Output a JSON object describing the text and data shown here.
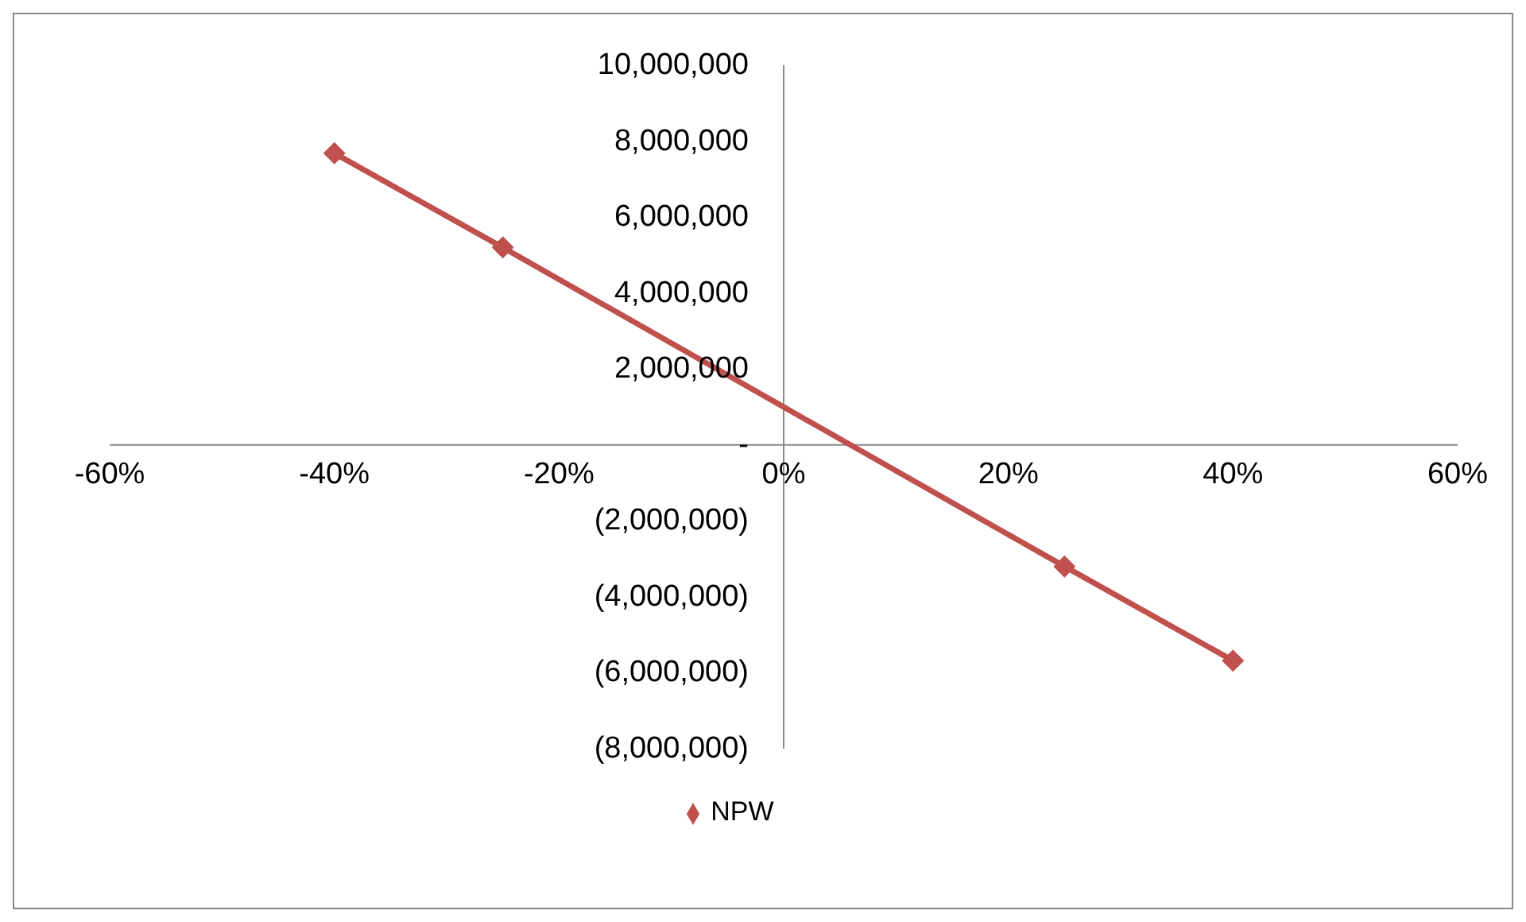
{
  "chart_data": {
    "type": "line",
    "x": [
      -40,
      -25,
      25,
      40
    ],
    "series": [
      {
        "name": "NPW",
        "color": "#c0504d",
        "values": [
          7680000,
          5200000,
          -3200000,
          -5680000
        ]
      }
    ],
    "xlim": [
      -60,
      60
    ],
    "xticks": [
      {
        "value": -60,
        "label": "-60%"
      },
      {
        "value": -40,
        "label": "-40%"
      },
      {
        "value": -20,
        "label": "-20%"
      },
      {
        "value": 0,
        "label": "0%"
      },
      {
        "value": 20,
        "label": "20%"
      },
      {
        "value": 40,
        "label": "40%"
      },
      {
        "value": 60,
        "label": "60%"
      }
    ],
    "ylim": [
      -8000000,
      10000000
    ],
    "yticks": [
      {
        "value": -8000000,
        "label": "(8,000,000)"
      },
      {
        "value": -6000000,
        "label": "(6,000,000)"
      },
      {
        "value": -4000000,
        "label": "(4,000,000)"
      },
      {
        "value": -2000000,
        "label": "(2,000,000)"
      },
      {
        "value": 0,
        "label": "-"
      },
      {
        "value": 2000000,
        "label": "2,000,000"
      },
      {
        "value": 4000000,
        "label": "4,000,000"
      },
      {
        "value": 6000000,
        "label": "6,000,000"
      },
      {
        "value": 8000000,
        "label": "8,000,000"
      },
      {
        "value": 10000000,
        "label": "10,000,000"
      }
    ],
    "grid": false,
    "legend": "bottom",
    "marker": "diamond",
    "line_style": "solid"
  }
}
